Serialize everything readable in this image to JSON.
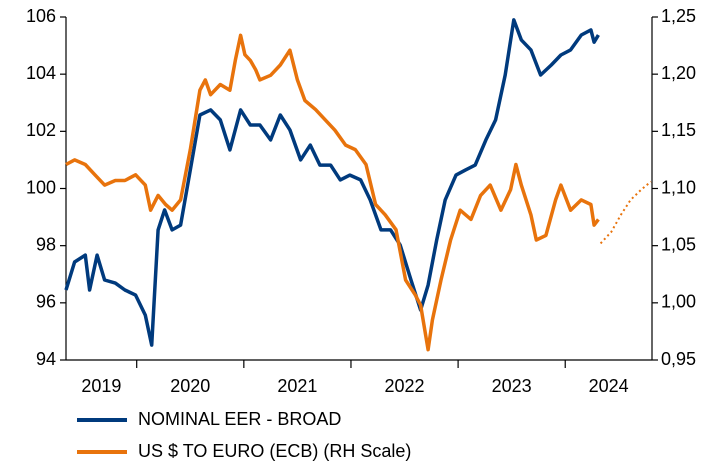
{
  "chart_data": {
    "type": "line",
    "xlim": [
      2019.34,
      2024.81
    ],
    "xticks": [
      2020,
      2021,
      2022,
      2023,
      2024
    ],
    "x_labels": [
      {
        "value": 2019.5,
        "label": "2019"
      },
      {
        "value": 2020.5,
        "label": "2020"
      },
      {
        "value": 2021.5,
        "label": "2021"
      },
      {
        "value": 2022.5,
        "label": "2022"
      },
      {
        "value": 2023.5,
        "label": "2023"
      },
      {
        "value": 2024.5,
        "label": "2024"
      }
    ],
    "ylim": [
      94,
      106
    ],
    "yticks": [
      94,
      96,
      98,
      100,
      102,
      104,
      106
    ],
    "y2lim": [
      0.95,
      1.25
    ],
    "y2ticks": [
      {
        "value": 0.95,
        "label": "0,95"
      },
      {
        "value": 1.0,
        "label": "1,00"
      },
      {
        "value": 1.05,
        "label": "1,05"
      },
      {
        "value": 1.1,
        "label": "1,10"
      },
      {
        "value": 1.15,
        "label": "1,15"
      },
      {
        "value": 1.2,
        "label": "1,20"
      },
      {
        "value": 1.25,
        "label": "1,25"
      }
    ],
    "grid": false,
    "legend": "bottom",
    "series": [
      {
        "name": "NOMINAL EER - BROAD",
        "color": "#003a7d",
        "axis": "y",
        "x": [
          2019.34,
          2019.42,
          2019.52,
          2019.56,
          2019.63,
          2019.7,
          2019.8,
          2019.89,
          2019.99,
          2020.08,
          2020.14,
          2020.2,
          2020.26,
          2020.33,
          2020.41,
          2020.5,
          2020.59,
          2020.69,
          2020.78,
          2020.87,
          2020.97,
          2021.06,
          2021.15,
          2021.25,
          2021.34,
          2021.43,
          2021.53,
          2021.62,
          2021.71,
          2021.81,
          2021.9,
          2021.99,
          2022.09,
          2022.18,
          2022.28,
          2022.37,
          2022.46,
          2022.56,
          2022.65,
          2022.72,
          2022.8,
          2022.88,
          2022.98,
          2023.07,
          2023.16,
          2023.26,
          2023.35,
          2023.44,
          2023.52,
          2023.59,
          2023.68,
          2023.77,
          2023.87,
          2023.96,
          2024.05,
          2024.15,
          2024.24,
          2024.27,
          2024.31
        ],
        "values": [
          96.45,
          97.43,
          97.67,
          96.45,
          97.67,
          96.8,
          96.69,
          96.45,
          96.27,
          95.57,
          94.52,
          98.55,
          99.25,
          98.55,
          98.72,
          100.65,
          102.57,
          102.75,
          102.4,
          101.35,
          102.75,
          102.22,
          102.22,
          101.7,
          102.57,
          102.05,
          101.0,
          101.52,
          100.82,
          100.82,
          100.3,
          100.47,
          100.3,
          99.6,
          98.55,
          98.55,
          98.02,
          96.8,
          95.75,
          96.62,
          98.2,
          99.6,
          100.47,
          100.65,
          100.82,
          101.7,
          102.4,
          103.97,
          105.9,
          105.2,
          104.85,
          103.97,
          104.32,
          104.67,
          104.85,
          105.37,
          105.55,
          105.12,
          105.37
        ]
      },
      {
        "name": "US $ TO EURO (ECB) (RH Scale)",
        "color": "#e8730c",
        "axis": "y2",
        "x": [
          2019.34,
          2019.42,
          2019.52,
          2019.61,
          2019.7,
          2019.8,
          2019.89,
          2019.99,
          2020.08,
          2020.13,
          2020.2,
          2020.27,
          2020.33,
          2020.41,
          2020.5,
          2020.59,
          2020.64,
          2020.69,
          2020.78,
          2020.87,
          2020.92,
          2020.97,
          2021.01,
          2021.06,
          2021.11,
          2021.15,
          2021.25,
          2021.34,
          2021.43,
          2021.5,
          2021.57,
          2021.67,
          2021.76,
          2021.85,
          2021.95,
          2022.04,
          2022.14,
          2022.23,
          2022.32,
          2022.42,
          2022.51,
          2022.6,
          2022.65,
          2022.72,
          2022.76,
          2022.84,
          2022.93,
          2023.02,
          2023.12,
          2023.21,
          2023.3,
          2023.4,
          2023.49,
          2023.54,
          2023.59,
          2023.68,
          2023.73,
          2023.82,
          2023.91,
          2023.96,
          2024.05,
          2024.15,
          2024.24,
          2024.27,
          2024.31
        ],
        "values": [
          1.121,
          1.125,
          1.121,
          1.112,
          1.103,
          1.107,
          1.107,
          1.112,
          1.103,
          1.081,
          1.094,
          1.086,
          1.081,
          1.09,
          1.134,
          1.186,
          1.195,
          1.182,
          1.191,
          1.186,
          1.212,
          1.234,
          1.217,
          1.212,
          1.204,
          1.195,
          1.199,
          1.208,
          1.221,
          1.195,
          1.177,
          1.169,
          1.16,
          1.151,
          1.138,
          1.134,
          1.121,
          1.086,
          1.077,
          1.064,
          1.02,
          1.007,
          0.998,
          0.959,
          0.985,
          1.02,
          1.055,
          1.081,
          1.073,
          1.094,
          1.103,
          1.081,
          1.099,
          1.121,
          1.103,
          1.077,
          1.055,
          1.059,
          1.09,
          1.103,
          1.081,
          1.09,
          1.086,
          1.068,
          1.073
        ]
      },
      {
        "color": "#e8730c",
        "axis": "y2",
        "dotted": true,
        "x": [
          2024.33,
          2024.43,
          2024.52,
          2024.61,
          2024.71,
          2024.8
        ],
        "values": [
          1.052,
          1.062,
          1.077,
          1.09,
          1.099,
          1.106
        ]
      }
    ]
  }
}
